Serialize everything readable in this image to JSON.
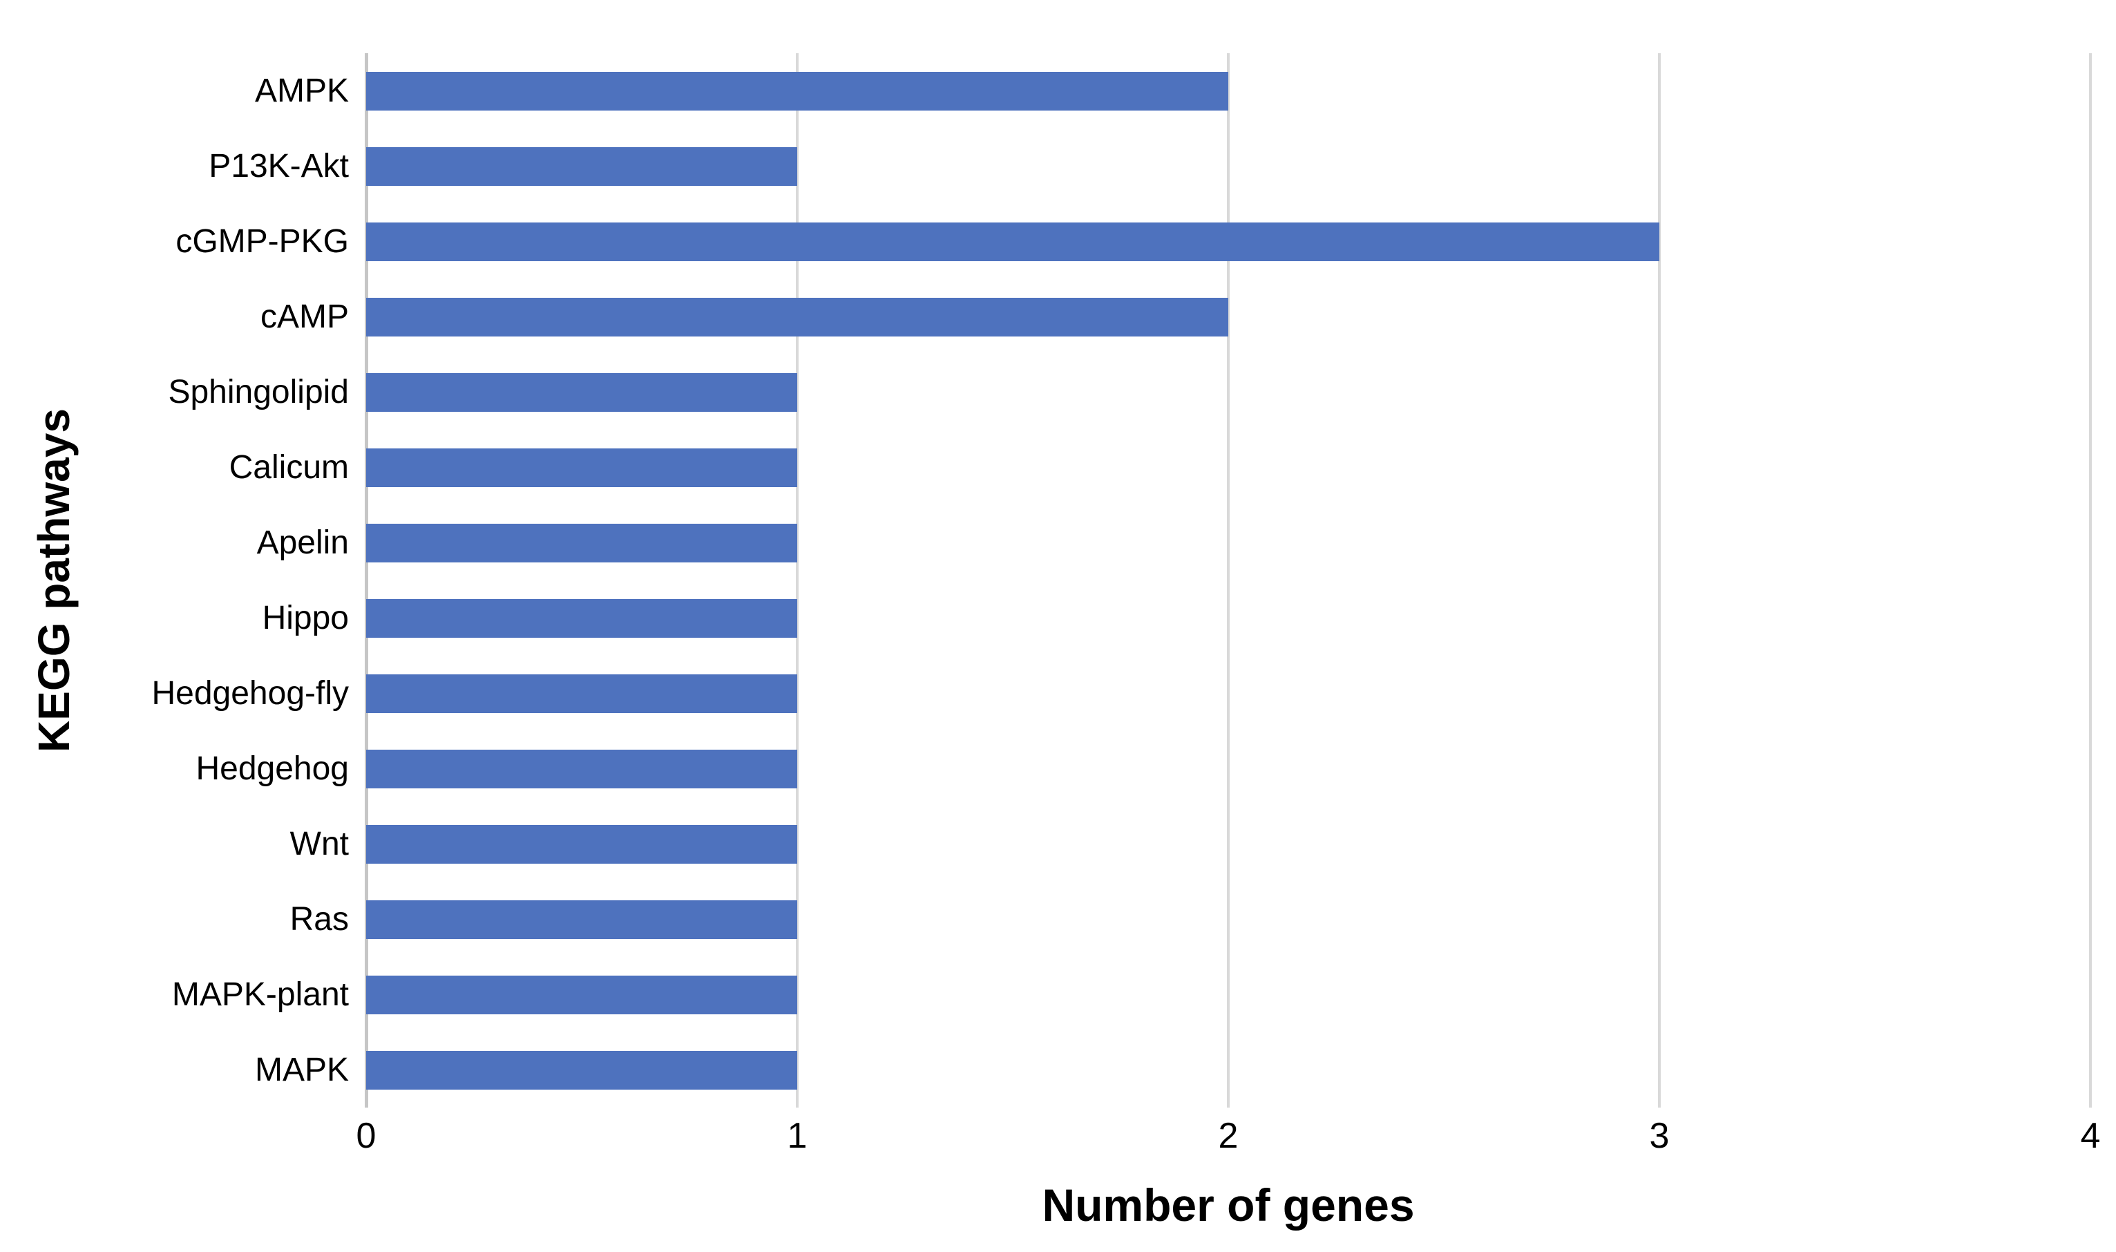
{
  "chart_data": {
    "type": "bar",
    "orientation": "horizontal",
    "title": "",
    "xlabel": "Number of genes",
    "ylabel": "KEGG pathways",
    "categories": [
      "AMPK",
      "P13K-Akt",
      "cGMP-PKG",
      "cAMP",
      "Sphingolipid",
      "Calicum",
      "Apelin",
      "Hippo",
      "Hedgehog-fly",
      "Hedgehog",
      "Wnt",
      "Ras",
      "MAPK-plant",
      "MAPK"
    ],
    "values": [
      2,
      1,
      3,
      2,
      1,
      1,
      1,
      1,
      1,
      1,
      1,
      1,
      1,
      1
    ],
    "xlim": [
      0,
      4
    ],
    "xticks": [
      0,
      1,
      2,
      3,
      4
    ],
    "grid": "vertical-only",
    "legend": "none",
    "bar_color": "#4e72be",
    "gridline_color": "#d9d9d9",
    "axis_line_color": "#c6c6c6",
    "text_color": "#000000"
  }
}
